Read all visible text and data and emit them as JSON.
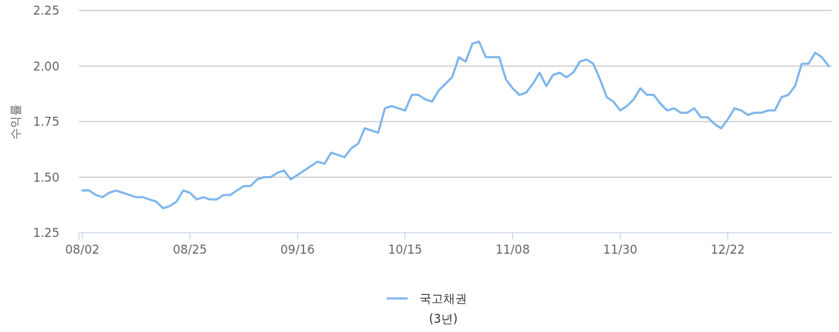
{
  "chart_data": {
    "type": "line",
    "ylabel": "수익률",
    "categories": [
      "08/02",
      null,
      null,
      null,
      null,
      null,
      null,
      null,
      null,
      null,
      null,
      null,
      null,
      null,
      null,
      null,
      "08/25",
      null,
      null,
      null,
      null,
      null,
      null,
      null,
      null,
      null,
      null,
      null,
      null,
      null,
      null,
      null,
      "09/16",
      null,
      null,
      null,
      null,
      null,
      null,
      null,
      null,
      null,
      null,
      null,
      null,
      null,
      null,
      null,
      "10/15",
      null,
      null,
      null,
      null,
      null,
      null,
      null,
      null,
      null,
      null,
      null,
      null,
      null,
      null,
      null,
      "11/08",
      null,
      null,
      null,
      null,
      null,
      null,
      null,
      null,
      null,
      null,
      null,
      null,
      null,
      null,
      null,
      "11/30",
      null,
      null,
      null,
      null,
      null,
      null,
      null,
      null,
      null,
      null,
      null,
      null,
      null,
      null,
      null,
      "12/22",
      null,
      null,
      null,
      null,
      null,
      null,
      null,
      null,
      null,
      null,
      null,
      null,
      null,
      null,
      null
    ],
    "series": [
      {
        "name": "국고채권 (3년)",
        "color": "#7cb5ec",
        "values": [
          1.44,
          1.44,
          1.42,
          1.41,
          1.43,
          1.44,
          1.43,
          1.42,
          1.41,
          1.41,
          1.4,
          1.39,
          1.36,
          1.37,
          1.39,
          1.44,
          1.43,
          1.4,
          1.41,
          1.4,
          1.4,
          1.42,
          1.42,
          1.44,
          1.46,
          1.46,
          1.49,
          1.5,
          1.5,
          1.52,
          1.53,
          1.49,
          1.51,
          1.53,
          1.55,
          1.57,
          1.56,
          1.61,
          1.6,
          1.59,
          1.63,
          1.65,
          1.72,
          1.71,
          1.7,
          1.81,
          1.82,
          1.81,
          1.8,
          1.87,
          1.87,
          1.85,
          1.84,
          1.89,
          1.92,
          1.95,
          2.04,
          2.02,
          2.1,
          2.11,
          2.04,
          2.04,
          2.04,
          1.94,
          1.9,
          1.87,
          1.88,
          1.92,
          1.97,
          1.91,
          1.96,
          1.97,
          1.95,
          1.97,
          2.02,
          2.03,
          2.01,
          1.94,
          1.86,
          1.84,
          1.8,
          1.82,
          1.85,
          1.9,
          1.87,
          1.87,
          1.83,
          1.8,
          1.81,
          1.79,
          1.79,
          1.81,
          1.77,
          1.77,
          1.74,
          1.72,
          1.76,
          1.81,
          1.8,
          1.78,
          1.79,
          1.79,
          1.8,
          1.8,
          1.86,
          1.87,
          1.91,
          2.01,
          2.01,
          2.06,
          2.04,
          2.0
        ]
      }
    ],
    "ylim": [
      1.25,
      2.25
    ],
    "yticks": [
      1.25,
      {
        "value": 1.5,
        "label": "1.50"
      },
      1.75,
      {
        "value": 2,
        "label": "2.00"
      },
      2.25
    ],
    "grid": "y",
    "legend": "bottom",
    "marker": "none",
    "line_style": "solid"
  }
}
